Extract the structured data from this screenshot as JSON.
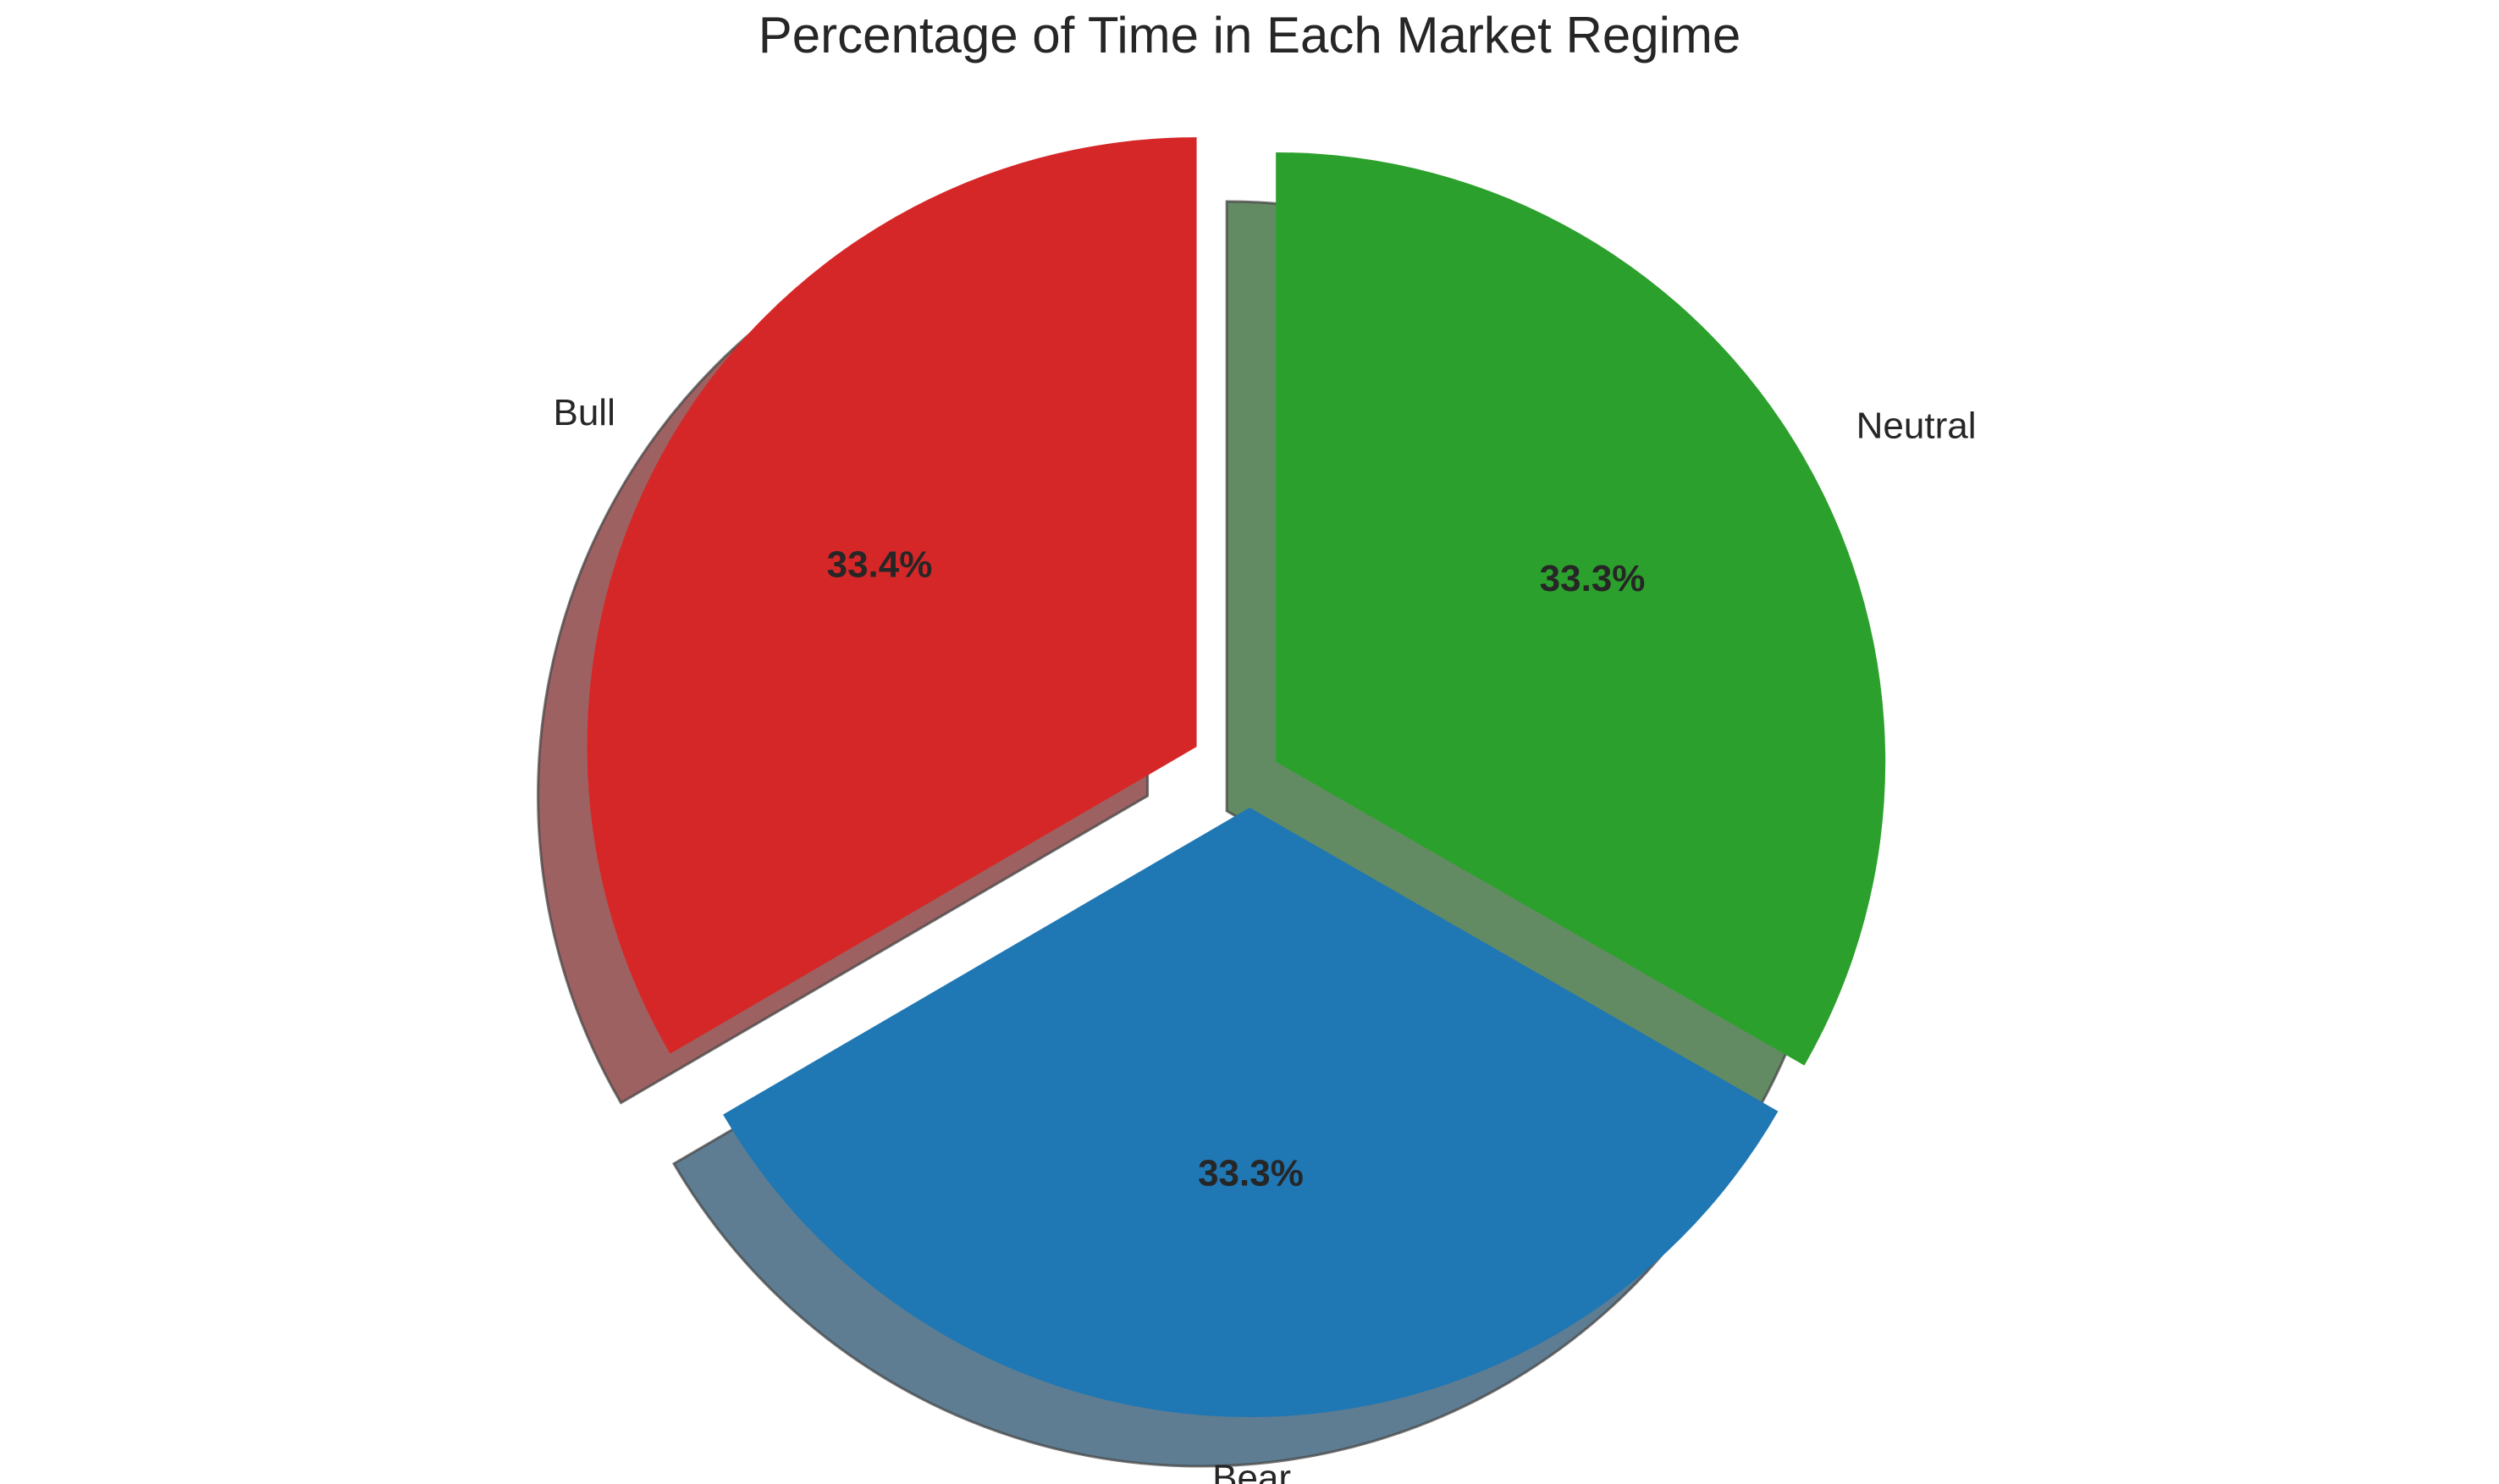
{
  "chart_data": {
    "type": "pie",
    "title": "Percentage of Time in Each Market Regime",
    "categories": [
      "Bull",
      "Bear",
      "Neutral"
    ],
    "values": [
      33.4,
      33.3,
      33.3
    ],
    "value_labels": [
      "33.4%",
      "33.3%",
      "33.3%"
    ],
    "colors": [
      "#d62728",
      "#1f77b4",
      "#2ca02c"
    ],
    "explode": [
      0.1,
      0.05,
      0.05
    ],
    "shadow": true,
    "start_angle_deg": 90,
    "direction": "counterclockwise",
    "legend": "none"
  }
}
